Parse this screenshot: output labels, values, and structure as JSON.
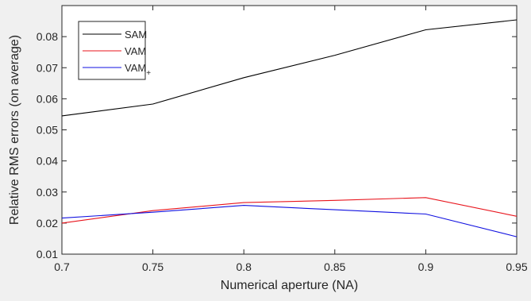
{
  "chart_data": {
    "type": "line",
    "title": "",
    "xlabel": "Numerical aperture (NA)",
    "ylabel": "Relative RMS errors (on average)",
    "xlim": [
      0.7,
      0.95
    ],
    "ylim": [
      0.01,
      0.09
    ],
    "x_ticks": [
      "0.7",
      "0.75",
      "0.8",
      "0.85",
      "0.9",
      "0.95"
    ],
    "y_ticks": [
      "0.01",
      "0.02",
      "0.03",
      "0.04",
      "0.05",
      "0.06",
      "0.07",
      "0.08"
    ],
    "grid": false,
    "legend_position": "top-left",
    "x": [
      0.7,
      0.75,
      0.8,
      0.85,
      0.9,
      0.95
    ],
    "series": [
      {
        "name": "SAM",
        "legend_main": "SAM",
        "legend_sub": "",
        "color": "#000000",
        "values": [
          0.0545,
          0.0583,
          0.0668,
          0.074,
          0.0822,
          0.0854
        ]
      },
      {
        "name": "VAM",
        "legend_main": "VAM",
        "legend_sub": "",
        "color": "#e8141c",
        "values": [
          0.02,
          0.024,
          0.0266,
          0.0273,
          0.0282,
          0.0222
        ]
      },
      {
        "name": "VAM+",
        "legend_main": "VAM",
        "legend_sub": "+",
        "color": "#1010e0",
        "values": [
          0.0216,
          0.0235,
          0.0257,
          0.0243,
          0.0229,
          0.0156
        ]
      }
    ]
  }
}
